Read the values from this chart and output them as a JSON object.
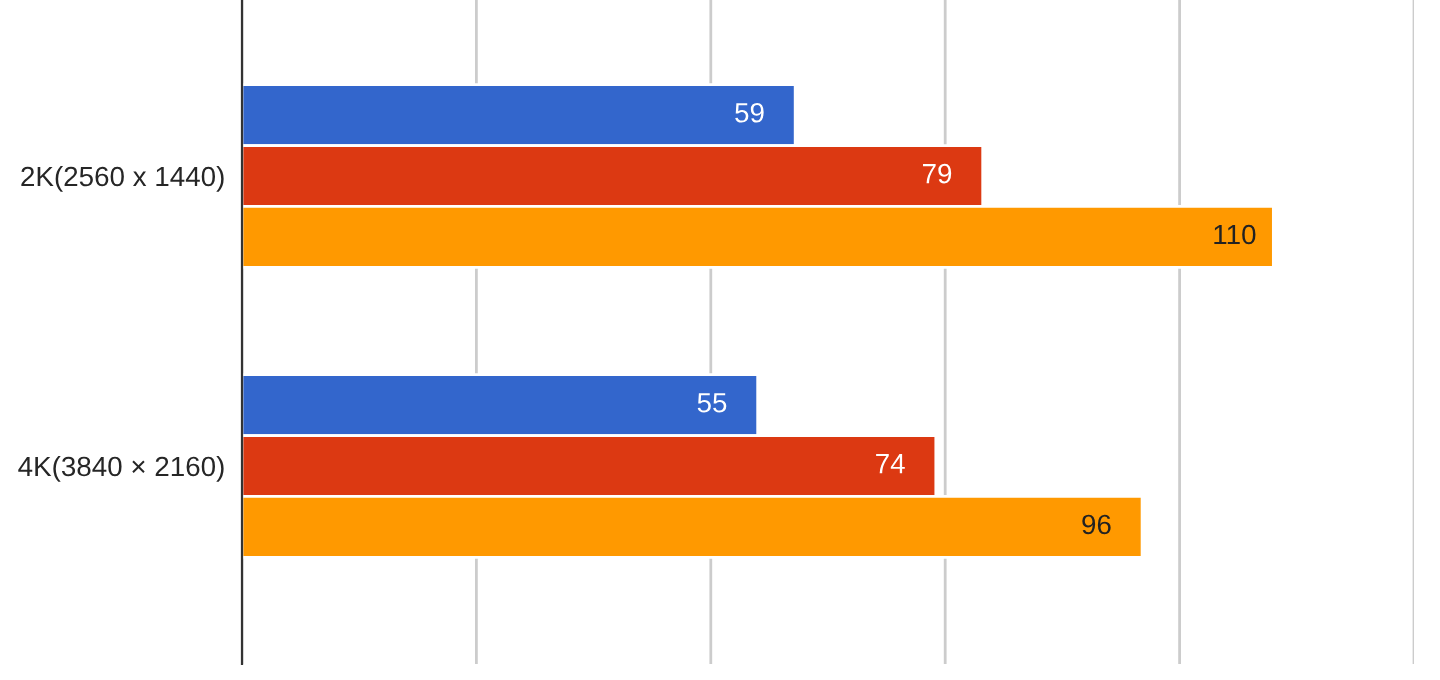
{
  "chart_data": {
    "type": "bar",
    "orientation": "horizontal",
    "categories": [
      "2K(2560 x 1440)",
      "4K(3840 × 2160)"
    ],
    "series": [
      {
        "color": "#3366cc",
        "values": [
          59,
          55
        ]
      },
      {
        "color": "#dc3912",
        "values": [
          79,
          74
        ]
      },
      {
        "color": "#ff9900",
        "values": [
          110,
          96
        ]
      }
    ],
    "xlim": [
      0,
      125
    ],
    "xticks": [
      {
        "value": 0,
        "label": null
      },
      {
        "value": 25,
        "label": null
      },
      {
        "value": 50,
        "label": null
      },
      {
        "value": 75,
        "label": null
      },
      {
        "value": 100,
        "label": null
      },
      {
        "value": 125,
        "label": null
      }
    ],
    "tick_labels": "y",
    "grid": "x",
    "data_labels": true
  }
}
